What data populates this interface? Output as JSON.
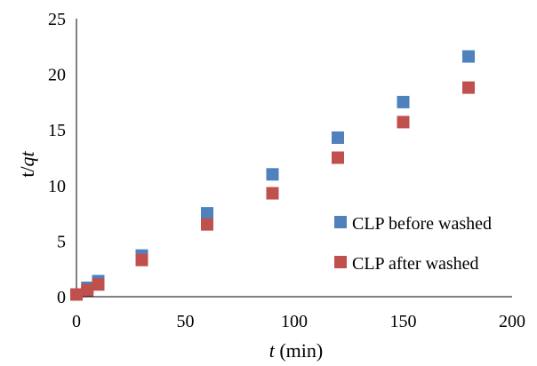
{
  "chart_data": {
    "type": "scatter",
    "xlabel": {
      "italic": "t",
      "rest": " (min)"
    },
    "ylabel": {
      "prefix": "t/",
      "italic": "qt"
    },
    "xlim": [
      0,
      200
    ],
    "ylim": [
      0,
      25
    ],
    "xticks": [
      0,
      50,
      100,
      150,
      200
    ],
    "yticks": [
      0,
      5,
      10,
      15,
      20,
      25
    ],
    "grid": false,
    "legend_position": "right-center",
    "series": [
      {
        "name": "CLP before washed",
        "color": "#4F81BD",
        "marker": "square",
        "points": [
          [
            0,
            0.2
          ],
          [
            5,
            0.8
          ],
          [
            10,
            1.4
          ],
          [
            30,
            3.7
          ],
          [
            60,
            7.5
          ],
          [
            90,
            11.0
          ],
          [
            120,
            14.3
          ],
          [
            150,
            17.5
          ],
          [
            180,
            21.6
          ]
        ]
      },
      {
        "name": "CLP after washed",
        "color": "#C0504D",
        "marker": "square",
        "points": [
          [
            0,
            0.2
          ],
          [
            5,
            0.6
          ],
          [
            10,
            1.1
          ],
          [
            30,
            3.3
          ],
          [
            60,
            6.5
          ],
          [
            90,
            9.3
          ],
          [
            120,
            12.5
          ],
          [
            150,
            15.7
          ],
          [
            180,
            18.8
          ]
        ]
      }
    ]
  }
}
